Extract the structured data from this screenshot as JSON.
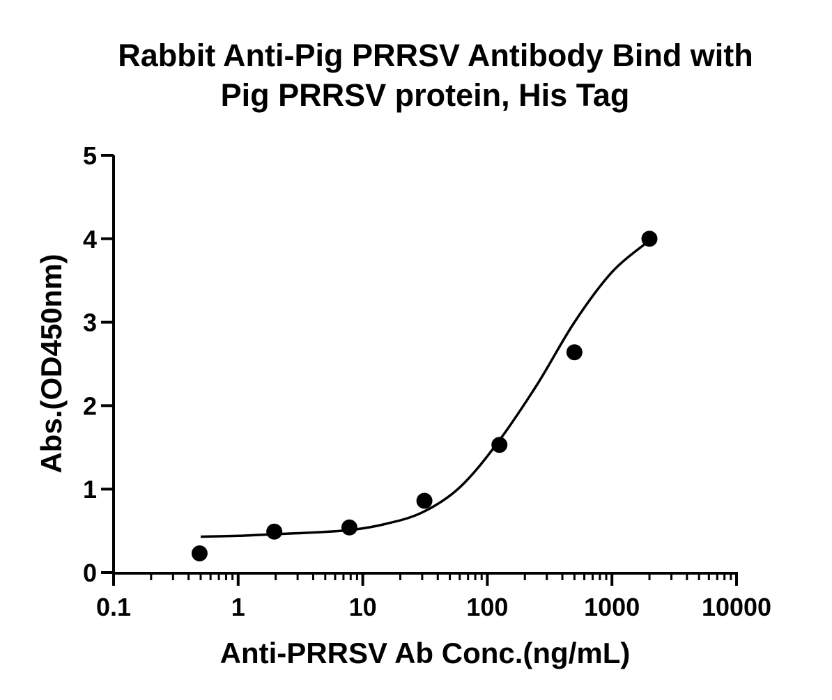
{
  "chart_data": {
    "type": "scatter",
    "title_lines": [
      "Rabbit Anti-Pig PRRSV  Antibody Bind with",
      "Pig PRRSV  protein, His Tag"
    ],
    "xlabel": "Anti-PRRSV Ab Conc.(ng/mL)",
    "ylabel": "Abs.(OD450nm)",
    "x_scale": "log",
    "xlim": [
      0.1,
      10000
    ],
    "ylim": [
      0,
      5
    ],
    "x_ticks": [
      0.1,
      1,
      10,
      100,
      1000,
      10000
    ],
    "x_tick_labels": [
      "0.1",
      "1",
      "10",
      "100",
      "1000",
      "10000"
    ],
    "y_ticks": [
      0,
      1,
      2,
      3,
      4,
      5
    ],
    "y_tick_labels": [
      "0",
      "1",
      "2",
      "3",
      "4",
      "5"
    ],
    "grid": false,
    "series": [
      {
        "x": [
          0.49,
          1.95,
          7.81,
          31.25,
          125,
          500,
          2000
        ],
        "y": [
          0.23,
          0.49,
          0.54,
          0.86,
          1.53,
          2.64,
          4.0
        ],
        "marker": "circle",
        "color": "#000000",
        "fit": "sigmoidal"
      }
    ],
    "fit_curve": {
      "x": [
        0.5,
        1,
        2,
        4,
        8,
        15,
        30,
        60,
        120,
        250,
        500,
        1000,
        2000
      ],
      "y": [
        0.43,
        0.44,
        0.46,
        0.48,
        0.51,
        0.58,
        0.72,
        1.02,
        1.55,
        2.25,
        3.0,
        3.6,
        3.98
      ]
    }
  }
}
